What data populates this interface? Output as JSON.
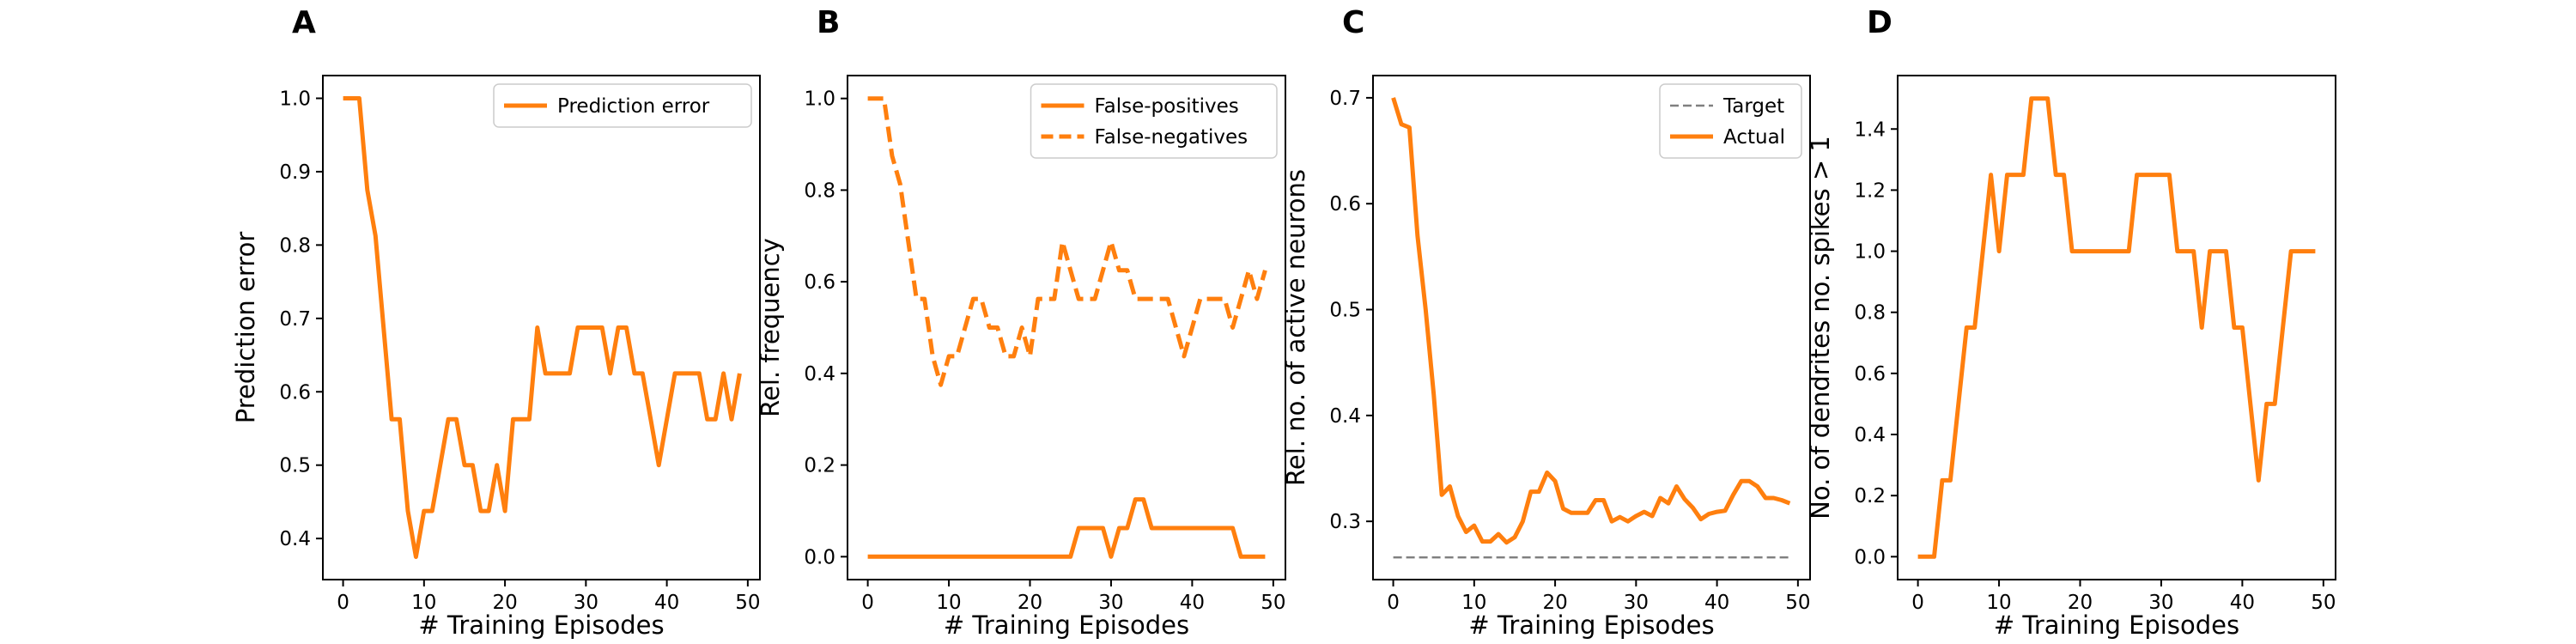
{
  "colors": {
    "series": "#ff7f0e",
    "target": "#808080",
    "axis": "#000000",
    "background": "#ffffff"
  },
  "chart_data": [
    {
      "panel": "A",
      "type": "line",
      "xlabel": "# Training Episodes",
      "ylabel": "Prediction error",
      "xlim": [
        -2.5,
        51.5
      ],
      "ylim": [
        0.344,
        1.031
      ],
      "xticks": [
        0,
        10,
        20,
        30,
        40,
        50
      ],
      "yticks": [
        0.4,
        0.5,
        0.6,
        0.7,
        0.8,
        0.9,
        1.0
      ],
      "ytick_labels": [
        "0.4",
        "0.5",
        "0.6",
        "0.7",
        "0.8",
        "0.9",
        "1.0"
      ],
      "legend_position": "upper right",
      "series": [
        {
          "name": "Prediction error",
          "style": "solid",
          "color": "#ff7f0e",
          "x": [
            0,
            1,
            2,
            3,
            4,
            5,
            6,
            7,
            8,
            9,
            10,
            11,
            12,
            13,
            14,
            15,
            16,
            17,
            18,
            19,
            20,
            21,
            22,
            23,
            24,
            25,
            26,
            27,
            28,
            29,
            30,
            31,
            32,
            33,
            34,
            35,
            36,
            37,
            38,
            39,
            40,
            41,
            42,
            43,
            44,
            45,
            46,
            47,
            48,
            49
          ],
          "y": [
            1.0,
            1.0,
            1.0,
            0.875,
            0.8125,
            0.6875,
            0.5625,
            0.5625,
            0.4375,
            0.375,
            0.4375,
            0.4375,
            0.5,
            0.5625,
            0.5625,
            0.5,
            0.5,
            0.4375,
            0.4375,
            0.5,
            0.4375,
            0.5625,
            0.5625,
            0.5625,
            0.6875,
            0.625,
            0.625,
            0.625,
            0.625,
            0.6875,
            0.6875,
            0.6875,
            0.6875,
            0.625,
            0.6875,
            0.6875,
            0.625,
            0.625,
            0.5625,
            0.5,
            0.5625,
            0.625,
            0.625,
            0.625,
            0.625,
            0.5625,
            0.5625,
            0.625,
            0.5625,
            0.625
          ]
        }
      ]
    },
    {
      "panel": "B",
      "type": "line",
      "xlabel": "# Training Episodes",
      "ylabel": "Rel. frequency",
      "xlim": [
        -2.5,
        51.5
      ],
      "ylim": [
        -0.05,
        1.05
      ],
      "xticks": [
        0,
        10,
        20,
        30,
        40,
        50
      ],
      "yticks": [
        0.0,
        0.2,
        0.4,
        0.6,
        0.8,
        1.0
      ],
      "ytick_labels": [
        "0.0",
        "0.2",
        "0.4",
        "0.6",
        "0.8",
        "1.0"
      ],
      "legend_position": "upper right",
      "series": [
        {
          "name": "False-positives",
          "style": "solid",
          "color": "#ff7f0e",
          "x": [
            0,
            1,
            2,
            3,
            4,
            5,
            6,
            7,
            8,
            9,
            10,
            11,
            12,
            13,
            14,
            15,
            16,
            17,
            18,
            19,
            20,
            21,
            22,
            23,
            24,
            25,
            26,
            27,
            28,
            29,
            30,
            31,
            32,
            33,
            34,
            35,
            36,
            37,
            38,
            39,
            40,
            41,
            42,
            43,
            44,
            45,
            46,
            47,
            48,
            49
          ],
          "y": [
            0,
            0,
            0,
            0,
            0,
            0,
            0,
            0,
            0,
            0,
            0,
            0,
            0,
            0,
            0,
            0,
            0,
            0,
            0,
            0,
            0,
            0,
            0,
            0,
            0,
            0,
            0.0625,
            0.0625,
            0.0625,
            0.0625,
            0,
            0.0625,
            0.0625,
            0.125,
            0.125,
            0.0625,
            0.0625,
            0.0625,
            0.0625,
            0.0625,
            0.0625,
            0.0625,
            0.0625,
            0.0625,
            0.0625,
            0.0625,
            0,
            0,
            0,
            0
          ]
        },
        {
          "name": "False-negatives",
          "style": "dashed",
          "color": "#ff7f0e",
          "x": [
            0,
            1,
            2,
            3,
            4,
            5,
            6,
            7,
            8,
            9,
            10,
            11,
            12,
            13,
            14,
            15,
            16,
            17,
            18,
            19,
            20,
            21,
            22,
            23,
            24,
            25,
            26,
            27,
            28,
            29,
            30,
            31,
            32,
            33,
            34,
            35,
            36,
            37,
            38,
            39,
            40,
            41,
            42,
            43,
            44,
            45,
            46,
            47,
            48,
            49
          ],
          "y": [
            1.0,
            1.0,
            1.0,
            0.875,
            0.8125,
            0.6875,
            0.5625,
            0.5625,
            0.4375,
            0.375,
            0.4375,
            0.4375,
            0.5,
            0.5625,
            0.5625,
            0.5,
            0.5,
            0.4375,
            0.4375,
            0.5,
            0.4375,
            0.5625,
            0.5625,
            0.5625,
            0.6875,
            0.625,
            0.5625,
            0.5625,
            0.5625,
            0.625,
            0.6875,
            0.625,
            0.625,
            0.5625,
            0.5625,
            0.5625,
            0.5625,
            0.5625,
            0.5,
            0.4375,
            0.5,
            0.5625,
            0.5625,
            0.5625,
            0.5625,
            0.5,
            0.5625,
            0.625,
            0.5625,
            0.625
          ]
        }
      ]
    },
    {
      "panel": "C",
      "type": "line",
      "xlabel": "# Training Episodes",
      "ylabel": "Rel. no. of active neurons",
      "xlim": [
        -2.5,
        51.5
      ],
      "ylim": [
        0.245,
        0.721
      ],
      "xticks": [
        0,
        10,
        20,
        30,
        40,
        50
      ],
      "yticks": [
        0.3,
        0.4,
        0.5,
        0.6,
        0.7
      ],
      "ytick_labels": [
        "0.3",
        "0.4",
        "0.5",
        "0.6",
        "0.7"
      ],
      "legend_position": "upper right",
      "series": [
        {
          "name": "Target",
          "style": "dashed",
          "color": "#808080",
          "x": [
            0,
            49
          ],
          "y": [
            0.266,
            0.266
          ]
        },
        {
          "name": "Actual",
          "style": "solid",
          "color": "#ff7f0e",
          "x": [
            0,
            1,
            2,
            3,
            4,
            5,
            6,
            7,
            8,
            9,
            10,
            11,
            12,
            13,
            14,
            15,
            16,
            17,
            18,
            19,
            20,
            21,
            22,
            23,
            24,
            25,
            26,
            27,
            28,
            29,
            30,
            31,
            32,
            33,
            34,
            35,
            36,
            37,
            38,
            39,
            40,
            41,
            42,
            43,
            44,
            45,
            46,
            47,
            48,
            49
          ],
          "y": [
            0.7,
            0.675,
            0.672,
            0.57,
            0.5,
            0.42,
            0.325,
            0.333,
            0.305,
            0.29,
            0.296,
            0.281,
            0.281,
            0.288,
            0.28,
            0.285,
            0.3,
            0.328,
            0.328,
            0.346,
            0.338,
            0.312,
            0.308,
            0.308,
            0.308,
            0.32,
            0.32,
            0.3,
            0.304,
            0.3,
            0.305,
            0.309,
            0.305,
            0.322,
            0.317,
            0.333,
            0.321,
            0.313,
            0.302,
            0.307,
            0.309,
            0.31,
            0.325,
            0.338,
            0.338,
            0.333,
            0.322,
            0.322,
            0.32,
            0.317
          ]
        }
      ]
    },
    {
      "panel": "D",
      "type": "line",
      "xlabel": "# Training Episodes",
      "ylabel": "No. of dendrites no. spikes > 1",
      "xlim": [
        -2.5,
        51.5
      ],
      "ylim": [
        -0.075,
        1.575
      ],
      "xticks": [
        0,
        10,
        20,
        30,
        40,
        50
      ],
      "yticks": [
        0.0,
        0.2,
        0.4,
        0.6,
        0.8,
        1.0,
        1.2,
        1.4
      ],
      "ytick_labels": [
        "0.0",
        "0.2",
        "0.4",
        "0.6",
        "0.8",
        "1.0",
        "1.2",
        "1.4"
      ],
      "legend_position": "none",
      "series": [
        {
          "name": "",
          "style": "solid",
          "color": "#ff7f0e",
          "x": [
            0,
            1,
            2,
            3,
            4,
            5,
            6,
            7,
            8,
            9,
            10,
            11,
            12,
            13,
            14,
            15,
            16,
            17,
            18,
            19,
            20,
            21,
            22,
            23,
            24,
            25,
            26,
            27,
            28,
            29,
            30,
            31,
            32,
            33,
            34,
            35,
            36,
            37,
            38,
            39,
            40,
            41,
            42,
            43,
            44,
            45,
            46,
            47,
            48,
            49
          ],
          "y": [
            0,
            0,
            0,
            0.25,
            0.25,
            0.5,
            0.75,
            0.75,
            1.0,
            1.25,
            1.0,
            1.25,
            1.25,
            1.25,
            1.5,
            1.5,
            1.5,
            1.25,
            1.25,
            1.0,
            1.0,
            1.0,
            1.0,
            1.0,
            1.0,
            1.0,
            1.0,
            1.25,
            1.25,
            1.25,
            1.25,
            1.25,
            1.0,
            1.0,
            1.0,
            0.75,
            1.0,
            1.0,
            1.0,
            0.75,
            0.75,
            0.5,
            0.25,
            0.5,
            0.5,
            0.75,
            1.0,
            1.0,
            1.0,
            1.0
          ]
        }
      ]
    }
  ]
}
